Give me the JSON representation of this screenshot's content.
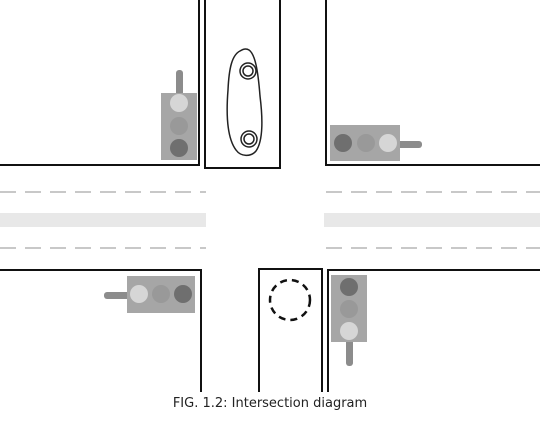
{
  "caption": "FIG. 1.2: Intersection diagram",
  "colors": {
    "curb": "#111111",
    "lane_dash": "#c8c8c8",
    "center_stripe": "#e8e8e8",
    "signal_housing": "#a6a6a6",
    "signal_pole": "#8c8c8c",
    "lamp_dark": "#6f6f6f",
    "lamp_mid": "#999999",
    "lamp_light": "#d6d6d6",
    "car_outline": "#222222",
    "marker": "#111111"
  },
  "icons": {
    "vehicle": "car-top-view-icon",
    "stop_marker": "dashed-circle-icon",
    "signal": "traffic-light-icon"
  }
}
